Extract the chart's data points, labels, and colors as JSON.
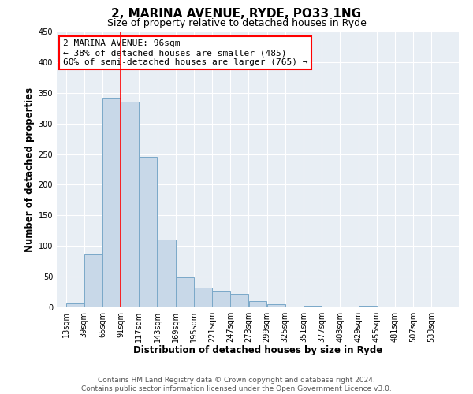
{
  "title": "2, MARINA AVENUE, RYDE, PO33 1NG",
  "subtitle": "Size of property relative to detached houses in Ryde",
  "xlabel": "Distribution of detached houses by size in Ryde",
  "ylabel": "Number of detached properties",
  "bins": [
    13,
    39,
    65,
    91,
    117,
    143,
    169,
    195,
    221,
    247,
    273,
    299,
    325,
    351,
    377,
    403,
    429,
    455,
    481,
    507,
    533,
    559
  ],
  "values": [
    7,
    88,
    342,
    335,
    246,
    110,
    49,
    32,
    27,
    22,
    10,
    5,
    0,
    2,
    0,
    0,
    2,
    0,
    0,
    0,
    1
  ],
  "bar_color": "#c8d8e8",
  "bar_edge_color": "#7aa8c8",
  "red_line_x": 91,
  "annotation_title": "2 MARINA AVENUE: 96sqm",
  "annotation_line1": "← 38% of detached houses are smaller (485)",
  "annotation_line2": "60% of semi-detached houses are larger (765) →",
  "annotation_box_color": "white",
  "annotation_box_edge_color": "red",
  "ylim": [
    0,
    450
  ],
  "yticks": [
    0,
    50,
    100,
    150,
    200,
    250,
    300,
    350,
    400,
    450
  ],
  "tick_labels": [
    "13sqm",
    "39sqm",
    "65sqm",
    "91sqm",
    "117sqm",
    "143sqm",
    "169sqm",
    "195sqm",
    "221sqm",
    "247sqm",
    "273sqm",
    "299sqm",
    "325sqm",
    "351sqm",
    "377sqm",
    "403sqm",
    "429sqm",
    "455sqm",
    "481sqm",
    "507sqm",
    "533sqm"
  ],
  "footer_line1": "Contains HM Land Registry data © Crown copyright and database right 2024.",
  "footer_line2": "Contains public sector information licensed under the Open Government Licence v3.0.",
  "background_color": "#e8eef4",
  "grid_color": "#ffffff",
  "title_fontsize": 11,
  "subtitle_fontsize": 9,
  "axis_label_fontsize": 8.5,
  "tick_fontsize": 7,
  "annotation_fontsize": 8,
  "footer_fontsize": 6.5
}
